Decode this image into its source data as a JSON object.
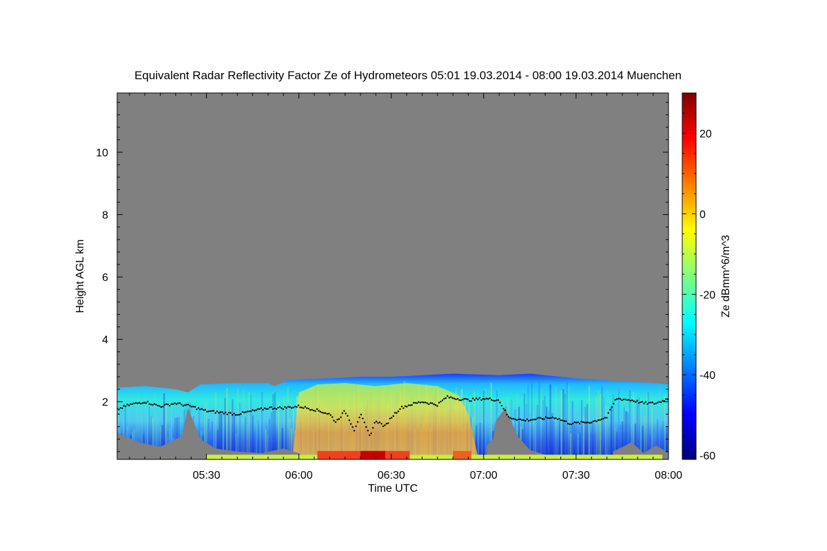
{
  "chart_data": {
    "type": "heatmap",
    "title": "Equivalent Radar Reflectivity Factor Ze of Hydrometeors   05:01 19.03.2014 - 08:00 19.03.2014 Muenchen",
    "xlabel": "Time UTC",
    "ylabel": "Height AGL km",
    "colorbar_label": "Ze dBmm^6/m^3",
    "xlim": [
      "05:01",
      "08:00"
    ],
    "ylim": [
      0.15,
      11.9
    ],
    "x_ticks": [
      {
        "minutes": 30,
        "label": "05:30"
      },
      {
        "minutes": 60,
        "label": "06:00"
      },
      {
        "minutes": 90,
        "label": "06:30"
      },
      {
        "minutes": 120,
        "label": "07:00"
      },
      {
        "minutes": 150,
        "label": "07:30"
      },
      {
        "minutes": 180,
        "label": "08:00"
      }
    ],
    "y_ticks": [
      {
        "value": 2,
        "label": "2"
      },
      {
        "value": 4,
        "label": "4"
      },
      {
        "value": 6,
        "label": "6"
      },
      {
        "value": 8,
        "label": "8"
      },
      {
        "value": 10,
        "label": "10"
      }
    ],
    "colorbar_range": [
      -61,
      30
    ],
    "colorbar_ticks": [
      {
        "value": 20,
        "label": "20"
      },
      {
        "value": 0,
        "label": "0"
      },
      {
        "value": -20,
        "label": "-20"
      },
      {
        "value": -40,
        "label": "-40"
      },
      {
        "value": -60,
        "label": "-60"
      }
    ],
    "colormap": "jet",
    "background_color": "#808080",
    "echo_top_km": [
      [
        1,
        2.45
      ],
      [
        10,
        2.5
      ],
      [
        20,
        2.4
      ],
      [
        24,
        2.3
      ],
      [
        28,
        2.55
      ],
      [
        40,
        2.6
      ],
      [
        50,
        2.6
      ],
      [
        52,
        2.5
      ],
      [
        57,
        2.7
      ],
      [
        70,
        2.75
      ],
      [
        80,
        2.8
      ],
      [
        90,
        2.8
      ],
      [
        100,
        2.85
      ],
      [
        110,
        2.9
      ],
      [
        125,
        2.85
      ],
      [
        135,
        2.9
      ],
      [
        150,
        2.75
      ],
      [
        165,
        2.65
      ],
      [
        175,
        2.6
      ],
      [
        180,
        2.55
      ]
    ],
    "cloud_base_km": [
      [
        1,
        1.75
      ],
      [
        5,
        1.9
      ],
      [
        10,
        2.0
      ],
      [
        15,
        1.85
      ],
      [
        20,
        1.95
      ],
      [
        25,
        1.85
      ],
      [
        30,
        1.7
      ],
      [
        35,
        1.65
      ],
      [
        40,
        1.6
      ],
      [
        45,
        1.7
      ],
      [
        50,
        1.8
      ],
      [
        55,
        1.8
      ],
      [
        60,
        1.85
      ],
      [
        65,
        1.75
      ],
      [
        70,
        1.6
      ],
      [
        72,
        1.35
      ],
      [
        75,
        1.7
      ],
      [
        78,
        1.1
      ],
      [
        80,
        1.6
      ],
      [
        83,
        0.9
      ],
      [
        85,
        1.4
      ],
      [
        88,
        1.2
      ],
      [
        90,
        1.5
      ],
      [
        93,
        1.8
      ],
      [
        96,
        1.9
      ],
      [
        100,
        2.0
      ],
      [
        105,
        1.9
      ],
      [
        108,
        2.15
      ],
      [
        115,
        2.05
      ],
      [
        120,
        2.1
      ],
      [
        125,
        2.05
      ],
      [
        128,
        1.5
      ],
      [
        133,
        1.4
      ],
      [
        138,
        1.45
      ],
      [
        143,
        1.5
      ],
      [
        148,
        1.3
      ],
      [
        155,
        1.35
      ],
      [
        160,
        1.5
      ],
      [
        163,
        2.1
      ],
      [
        168,
        2.05
      ],
      [
        172,
        1.95
      ],
      [
        176,
        1.95
      ],
      [
        180,
        2.1
      ]
    ]
  }
}
